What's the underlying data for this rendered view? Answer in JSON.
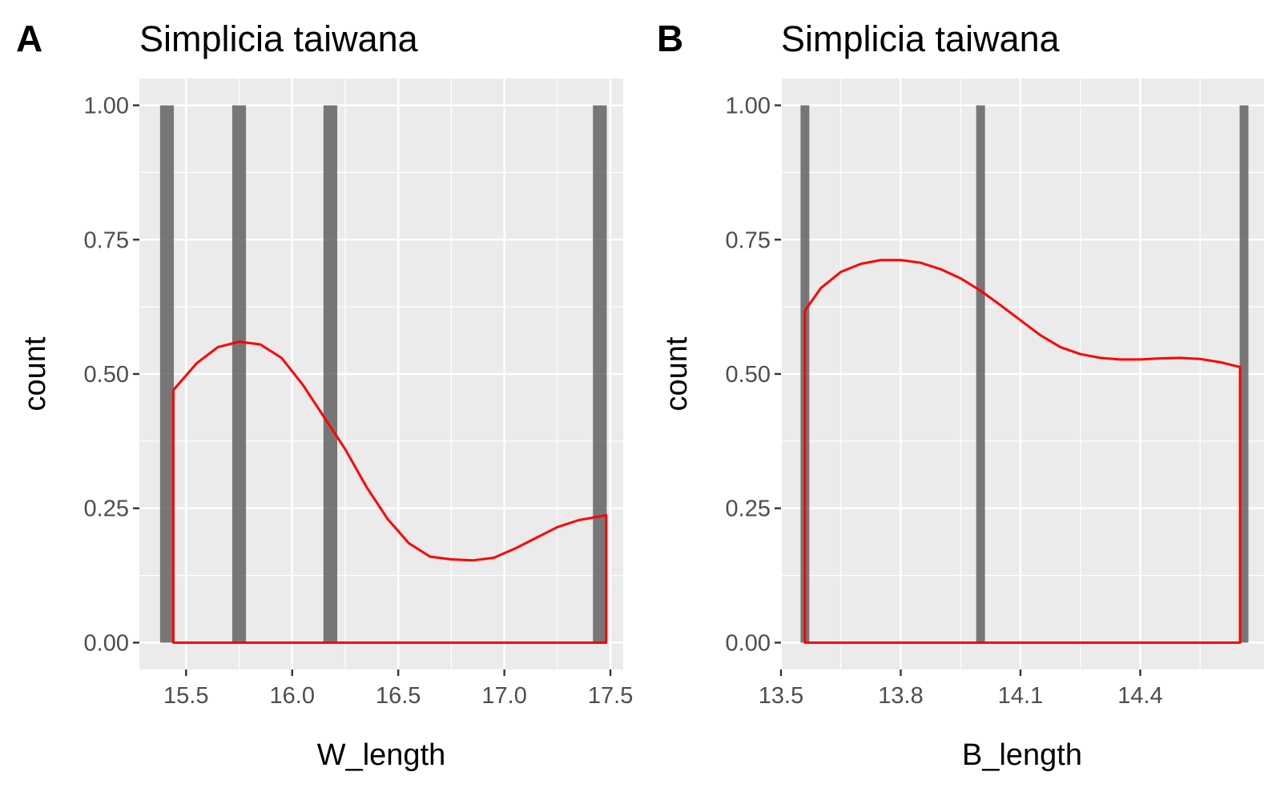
{
  "chart_data": [
    {
      "panel_tag": "A",
      "type": "bar",
      "title": "Simplicia taiwana",
      "xlabel": "W_length",
      "ylabel": "count",
      "xlim": [
        15.28,
        17.56
      ],
      "ylim": [
        -0.05,
        1.05
      ],
      "x_ticks": [
        15.5,
        16.0,
        16.5,
        17.0,
        17.5
      ],
      "x_tick_labels": [
        "15.5",
        "16.0",
        "16.5",
        "17.0",
        "17.5"
      ],
      "y_ticks": [
        0,
        0.25,
        0.5,
        0.75,
        1.0
      ],
      "y_tick_labels": [
        "0.00",
        "0.25",
        "0.50",
        "0.75",
        "1.00"
      ],
      "bar_width": 0.065,
      "bars": [
        {
          "x": 15.41,
          "count": 1
        },
        {
          "x": 15.75,
          "count": 1
        },
        {
          "x": 16.18,
          "count": 1
        },
        {
          "x": 17.45,
          "count": 1
        }
      ],
      "density_line": {
        "color": "#ff0000",
        "x": [
          15.44,
          15.55,
          15.65,
          15.75,
          15.85,
          15.95,
          16.05,
          16.15,
          16.25,
          16.35,
          16.45,
          16.55,
          16.65,
          16.75,
          16.85,
          16.95,
          17.05,
          17.15,
          17.25,
          17.35,
          17.48
        ],
        "y": [
          0.47,
          0.52,
          0.55,
          0.56,
          0.555,
          0.53,
          0.48,
          0.42,
          0.36,
          0.29,
          0.23,
          0.185,
          0.16,
          0.155,
          0.153,
          0.158,
          0.175,
          0.195,
          0.215,
          0.228,
          0.237
        ]
      }
    },
    {
      "panel_tag": "B",
      "type": "bar",
      "title": "Simplicia taiwana",
      "xlabel": "B_length",
      "ylabel": "count",
      "xlim": [
        13.5,
        14.71
      ],
      "ylim": [
        -0.05,
        1.05
      ],
      "x_ticks": [
        13.5,
        13.8,
        14.1,
        14.4
      ],
      "x_tick_labels": [
        "13.5",
        "13.8",
        "14.1",
        "14.4"
      ],
      "y_ticks": [
        0,
        0.25,
        0.5,
        0.75,
        1.0
      ],
      "y_tick_labels": [
        "0.00",
        "0.25",
        "0.50",
        "0.75",
        "1.00"
      ],
      "bar_width": 0.022,
      "bars": [
        {
          "x": 13.56,
          "count": 1
        },
        {
          "x": 14.0,
          "count": 1
        },
        {
          "x": 14.66,
          "count": 1
        }
      ],
      "density_line": {
        "color": "#ff0000",
        "x": [
          13.56,
          13.6,
          13.65,
          13.7,
          13.75,
          13.8,
          13.85,
          13.9,
          13.95,
          14.0,
          14.05,
          14.1,
          14.15,
          14.2,
          14.25,
          14.3,
          14.35,
          14.4,
          14.45,
          14.5,
          14.55,
          14.6,
          14.65
        ],
        "y": [
          0.618,
          0.66,
          0.69,
          0.705,
          0.712,
          0.712,
          0.707,
          0.695,
          0.678,
          0.655,
          0.628,
          0.6,
          0.572,
          0.55,
          0.537,
          0.53,
          0.527,
          0.527,
          0.529,
          0.53,
          0.528,
          0.522,
          0.513
        ]
      }
    }
  ]
}
